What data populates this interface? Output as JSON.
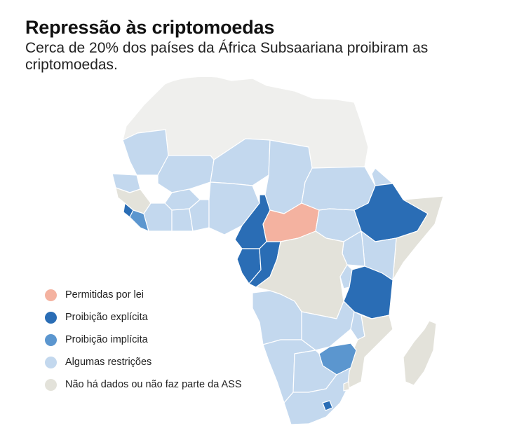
{
  "title": "Repressão às criptomoedas",
  "subtitle": "Cerca de 20% dos países da África Subsaariana proibiram as criptomoedas.",
  "colors": {
    "permitted": "#f4b2a0",
    "explicit_ban": "#2a6db5",
    "implicit_ban": "#5b96cf",
    "restrictions": "#c3d8ee",
    "no_data": "#e3e2da",
    "non_ssa": "#efefed"
  },
  "legend": [
    {
      "label": "Permitidas por lei",
      "category": "permitted"
    },
    {
      "label": "Proibição explícita",
      "category": "explicit_ban"
    },
    {
      "label": "Proibição implícita",
      "category": "implicit_ban"
    },
    {
      "label": "Algumas restrições",
      "category": "restrictions"
    },
    {
      "label": "Não há dados ou não faz parte da ASS",
      "category": "no_data"
    }
  ],
  "map_data": {
    "permitted": [
      "Central African Republic"
    ],
    "explicit_ban": [
      "Cameroon",
      "Republic of the Congo",
      "Ethiopia",
      "Tanzania",
      "Lesotho",
      "Sierra Leone",
      "Gabon"
    ],
    "implicit_ban": [
      "Zimbabwe",
      "Liberia"
    ],
    "restrictions": [
      "Mauritania",
      "Mali",
      "Niger",
      "Chad",
      "Sudan",
      "Senegal",
      "Burkina Faso",
      "Ghana",
      "Nigeria",
      "Côte d'Ivoire",
      "Togo",
      "Benin",
      "Eritrea",
      "South Sudan",
      "Uganda",
      "Kenya",
      "Rwanda",
      "Burundi",
      "Angola",
      "Namibia",
      "Botswana",
      "South Africa",
      "Zambia",
      "Malawi"
    ],
    "no_data": [
      "Democratic Republic of the Congo",
      "Mozambique",
      "Madagascar",
      "Somalia",
      "Guinea",
      "Eswatini"
    ],
    "non_ssa": [
      "Morocco",
      "Algeria",
      "Tunisia",
      "Libya",
      "Egypt",
      "Western Sahara"
    ]
  }
}
